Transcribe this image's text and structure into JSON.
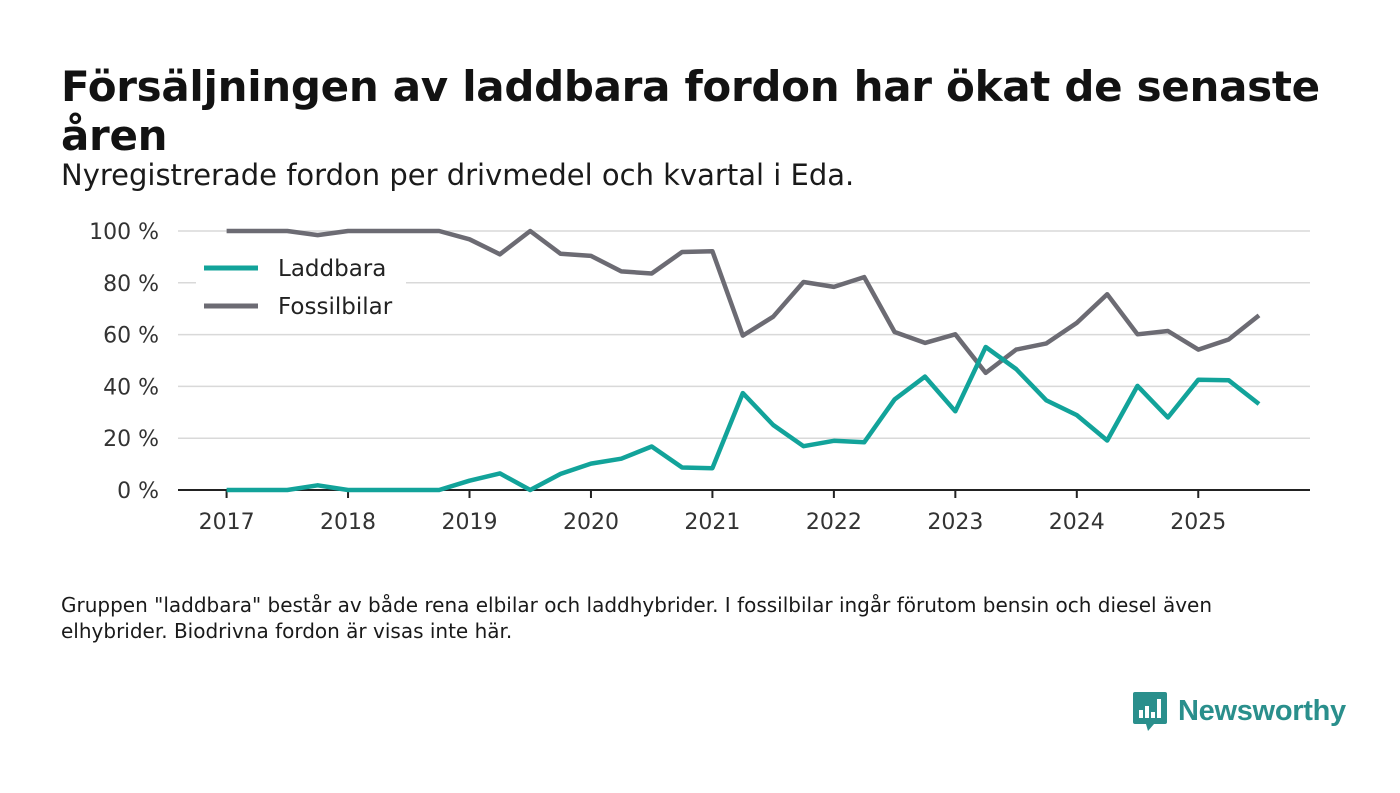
{
  "header": {
    "title": "Försäljningen av laddbara fordon har ökat de senaste åren",
    "subtitle": "Nyregistrerade fordon per drivmedel och kvartal i Eda."
  },
  "footer": {
    "note": "Gruppen \"laddbara\" består av både rena elbilar och laddhybrider. I fossilbilar ingår förutom bensin och diesel även elhybrider. Biodrivna fordon är visas inte här.",
    "brand": "Newsworthy"
  },
  "colors": {
    "laddbara": "#12a39a",
    "fossil": "#6c6b73",
    "grid": "#d9d9d9",
    "axis": "#222222",
    "brand": "#2a8f8c"
  },
  "chart_data": {
    "type": "line",
    "title": "Försäljningen av laddbara fordon har ökat de senaste åren",
    "subtitle": "Nyregistrerade fordon per drivmedel och kvartal i Eda.",
    "xlabel": "",
    "ylabel": "",
    "ylim": [
      0,
      100
    ],
    "xlim": [
      2016.6,
      2025.92
    ],
    "y_ticks": [
      0,
      20,
      40,
      60,
      80,
      100
    ],
    "y_tick_labels": [
      "0 %",
      "20 %",
      "40 %",
      "60 %",
      "80 %",
      "100 %"
    ],
    "x_ticks": [
      2017,
      2018,
      2019,
      2020,
      2021,
      2022,
      2023,
      2024,
      2025
    ],
    "x_tick_labels": [
      "2017",
      "2018",
      "2019",
      "2020",
      "2021",
      "2022",
      "2023",
      "2024",
      "2025"
    ],
    "grid": true,
    "legend": "top-left",
    "x": [
      2017.0,
      2017.25,
      2017.5,
      2017.75,
      2018.0,
      2018.25,
      2018.5,
      2018.75,
      2019.0,
      2019.25,
      2019.5,
      2019.75,
      2020.0,
      2020.25,
      2020.5,
      2020.75,
      2021.0,
      2021.25,
      2021.5,
      2021.75,
      2022.0,
      2022.25,
      2022.5,
      2022.75,
      2023.0,
      2023.25,
      2023.5,
      2023.75,
      2024.0,
      2024.25,
      2024.5,
      2024.75,
      2025.0,
      2025.25,
      2025.5
    ],
    "series": [
      {
        "name": "Laddbara",
        "color": "#12a39a",
        "values": [
          0,
          0,
          0,
          1.8,
          0,
          0,
          0,
          0,
          3.6,
          6.4,
          0,
          6.2,
          10.2,
          12.1,
          16.8,
          8.7,
          8.4,
          37.4,
          25.1,
          16.9,
          19.0,
          18.4,
          35.0,
          43.8,
          30.4,
          55.2,
          46.7,
          34.6,
          28.9,
          19.1,
          40.2,
          28.0,
          42.6,
          42.4,
          33.2
        ]
      },
      {
        "name": "Fossilbilar",
        "color": "#6c6b73",
        "values": [
          100,
          100,
          100,
          98.4,
          100,
          100,
          100,
          100,
          96.8,
          91.0,
          100,
          91.2,
          90.4,
          84.4,
          83.6,
          91.9,
          92.2,
          59.6,
          66.9,
          80.3,
          78.4,
          82.2,
          61.0,
          56.8,
          60.1,
          45.2,
          54.2,
          56.6,
          64.5,
          75.6,
          60.1,
          61.4,
          54.2,
          58.1,
          67.4
        ]
      }
    ]
  }
}
